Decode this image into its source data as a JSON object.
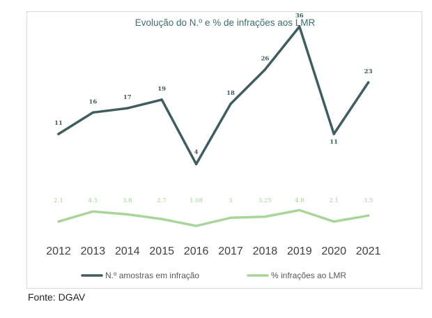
{
  "chart_data": {
    "type": "line",
    "title": "Evolução do N.º e % de infrações aos LMR",
    "categories": [
      "2012",
      "2013",
      "2014",
      "2015",
      "2016",
      "2017",
      "2018",
      "2019",
      "2020",
      "2021"
    ],
    "series": [
      {
        "name": "N.º amostras em infração",
        "values": [
          11,
          16,
          17,
          19,
          4,
          18,
          26,
          36,
          11,
          23
        ],
        "labels": [
          "11",
          "16",
          "17",
          "19",
          "4",
          "18",
          "26",
          "36",
          "11",
          "23"
        ],
        "color": "#3f5c5e"
      },
      {
        "name": "% infrações ao LMR",
        "values": [
          2.1,
          4.5,
          3.8,
          2.7,
          1.08,
          3,
          3.25,
          4.8,
          2.1,
          3.5
        ],
        "labels": [
          "2.1",
          "4.5",
          "3.8",
          "2.7",
          "1.08",
          "3",
          "3.25",
          "4.8",
          "2.1",
          "3.5"
        ],
        "color": "#a9d49a"
      }
    ],
    "xlabel": "",
    "ylabel": "",
    "grid": false,
    "legend": "bottom"
  },
  "source": "Fonte: DGAV"
}
